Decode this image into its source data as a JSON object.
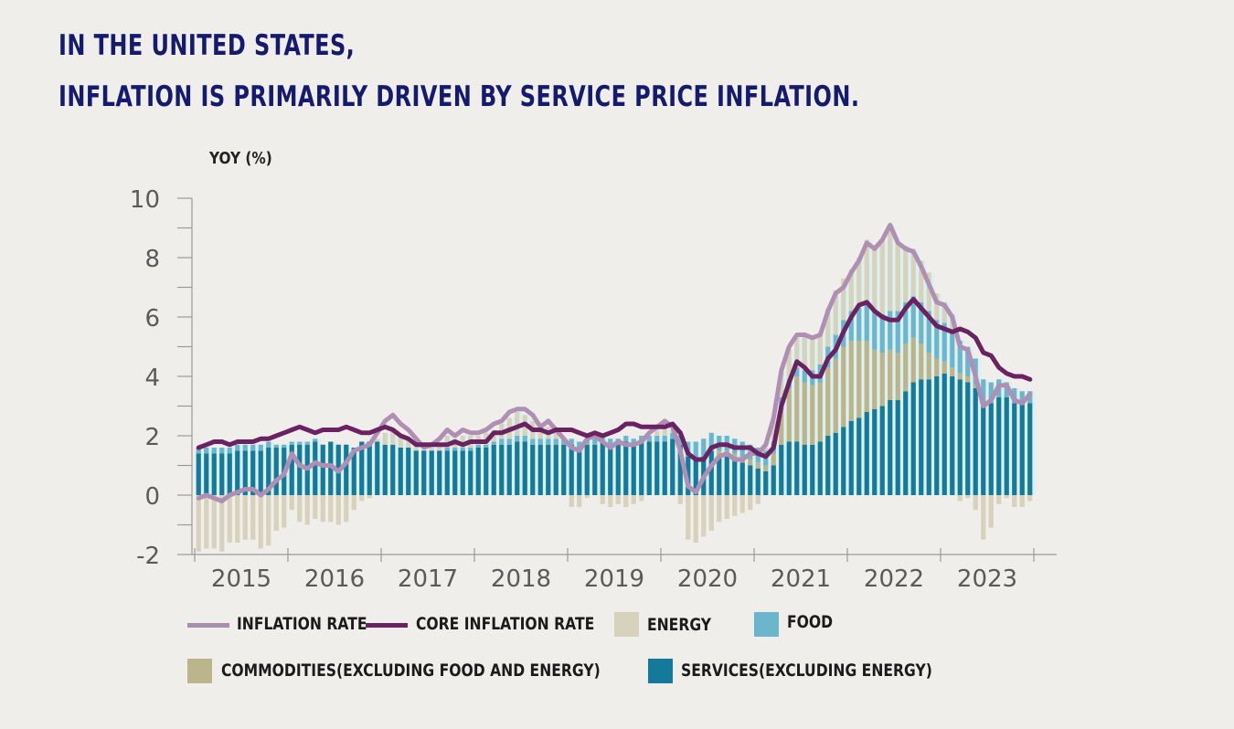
{
  "headline": {
    "line1": "IN THE UNITED STATES,",
    "line2": "INFLATION IS PRIMARILY DRIVEN BY SERVICE PRICE INFLATION."
  },
  "colors": {
    "background": "#f0eeea",
    "headline": "#141a6e",
    "inflation": "#b08fb5",
    "core": "#6a2262",
    "energy": "#d7d2bb",
    "food": "#6bb6cd",
    "commodities": "#bcb48a",
    "services": "#137a9b",
    "axis": "#9a9a9a",
    "bar_gap": "#c8f2f6"
  },
  "legend": {
    "inflation": "INFLATION RATE",
    "core": "CORE INFLATION RATE",
    "energy": "ENERGY",
    "food": "FOOD",
    "commodities": "COMMODITIES(EXCLUDING FOOD AND ENERGY)",
    "services": "SERVICES(EXCLUDING ENERGY)"
  },
  "chart_data": {
    "type": "bar",
    "subtype": "stacked bar + line",
    "title": "In the United States, inflation is primarily driven by service price inflation.",
    "ylabel": "YOY (%)",
    "xlabel": "",
    "ylim": [
      -2,
      10
    ],
    "yticks": [
      -2,
      0,
      2,
      4,
      6,
      8,
      10
    ],
    "ytick_labels": [
      "-2",
      "0",
      "2",
      "4",
      "6",
      "8",
      "10"
    ],
    "x_categories": [
      "2015",
      "2016",
      "2017",
      "2018",
      "2019",
      "2020",
      "2021",
      "2022",
      "2023"
    ],
    "frequency": "monthly",
    "start": "2015-01",
    "end": "2023-12",
    "grid": false,
    "legend_position": "bottom",
    "lines": [
      {
        "name": "INFLATION RATE",
        "values": [
          -0.1,
          0.0,
          -0.1,
          -0.2,
          0.0,
          0.1,
          0.2,
          0.2,
          0.0,
          0.2,
          0.5,
          0.7,
          1.4,
          1.0,
          0.9,
          1.1,
          1.0,
          1.0,
          0.8,
          1.1,
          1.5,
          1.6,
          1.7,
          2.1,
          2.5,
          2.7,
          2.4,
          2.2,
          1.9,
          1.6,
          1.7,
          1.9,
          2.2,
          2.0,
          2.2,
          2.1,
          2.1,
          2.2,
          2.4,
          2.5,
          2.8,
          2.9,
          2.9,
          2.7,
          2.3,
          2.5,
          2.2,
          1.9,
          1.6,
          1.5,
          1.9,
          2.0,
          1.8,
          1.6,
          1.8,
          1.7,
          1.7,
          1.8,
          2.1,
          2.3,
          2.5,
          2.3,
          1.5,
          0.3,
          0.1,
          0.6,
          1.0,
          1.3,
          1.4,
          1.2,
          1.2,
          1.4,
          1.4,
          1.7,
          2.6,
          4.2,
          5.0,
          5.4,
          5.4,
          5.3,
          5.4,
          6.2,
          6.8,
          7.0,
          7.5,
          7.9,
          8.5,
          8.3,
          8.6,
          9.1,
          8.5,
          8.3,
          8.2,
          7.7,
          7.1,
          6.5,
          6.4,
          6.0,
          5.0,
          4.9,
          4.0,
          3.0,
          3.2,
          3.7,
          3.7,
          3.2,
          3.1,
          3.4
        ]
      },
      {
        "name": "CORE INFLATION RATE",
        "values": [
          1.6,
          1.7,
          1.8,
          1.8,
          1.7,
          1.8,
          1.8,
          1.8,
          1.9,
          1.9,
          2.0,
          2.1,
          2.2,
          2.3,
          2.2,
          2.1,
          2.2,
          2.2,
          2.2,
          2.3,
          2.2,
          2.1,
          2.1,
          2.2,
          2.3,
          2.2,
          2.0,
          1.9,
          1.7,
          1.7,
          1.7,
          1.7,
          1.7,
          1.8,
          1.7,
          1.8,
          1.8,
          1.8,
          2.1,
          2.1,
          2.2,
          2.3,
          2.4,
          2.2,
          2.2,
          2.1,
          2.2,
          2.2,
          2.2,
          2.1,
          2.0,
          2.1,
          2.0,
          2.1,
          2.2,
          2.4,
          2.4,
          2.3,
          2.3,
          2.3,
          2.3,
          2.4,
          2.1,
          1.4,
          1.2,
          1.2,
          1.6,
          1.7,
          1.7,
          1.6,
          1.6,
          1.6,
          1.4,
          1.3,
          1.6,
          3.0,
          3.8,
          4.5,
          4.3,
          4.0,
          4.0,
          4.6,
          4.9,
          5.5,
          6.0,
          6.4,
          6.5,
          6.2,
          6.0,
          5.9,
          5.9,
          6.3,
          6.6,
          6.3,
          6.0,
          5.7,
          5.6,
          5.5,
          5.6,
          5.5,
          5.3,
          4.8,
          4.7,
          4.3,
          4.1,
          4.0,
          4.0,
          3.9
        ]
      }
    ],
    "series": [
      {
        "name": "SERVICES(EXCLUDING ENERGY)",
        "values": [
          1.4,
          1.4,
          1.4,
          1.4,
          1.4,
          1.5,
          1.5,
          1.5,
          1.5,
          1.6,
          1.6,
          1.6,
          1.7,
          1.7,
          1.7,
          1.8,
          1.7,
          1.8,
          1.7,
          1.7,
          1.6,
          1.8,
          1.8,
          1.8,
          1.7,
          1.7,
          1.6,
          1.6,
          1.5,
          1.5,
          1.5,
          1.5,
          1.5,
          1.5,
          1.5,
          1.5,
          1.6,
          1.6,
          1.7,
          1.7,
          1.7,
          1.8,
          1.8,
          1.7,
          1.7,
          1.7,
          1.7,
          1.7,
          1.7,
          1.6,
          1.7,
          1.7,
          1.8,
          1.7,
          1.7,
          1.8,
          1.7,
          1.8,
          1.8,
          1.8,
          1.8,
          1.9,
          1.7,
          1.3,
          1.2,
          1.3,
          1.5,
          1.3,
          1.3,
          1.2,
          1.1,
          1.0,
          0.9,
          0.8,
          1.0,
          1.7,
          1.8,
          1.8,
          1.7,
          1.7,
          1.8,
          2.0,
          2.1,
          2.3,
          2.5,
          2.6,
          2.8,
          2.9,
          3.0,
          3.2,
          3.2,
          3.5,
          3.8,
          3.9,
          3.9,
          4.0,
          4.1,
          4.0,
          3.9,
          3.8,
          3.6,
          3.0,
          3.1,
          3.3,
          3.3,
          3.1,
          3.1,
          3.1
        ]
      },
      {
        "name": "COMMODITIES(EXCLUDING FOOD AND ENERGY)",
        "values": [
          0.0,
          0.0,
          0.0,
          0.0,
          0.0,
          0.0,
          0.0,
          0.0,
          0.0,
          0.0,
          0.0,
          0.0,
          0.0,
          0.0,
          0.0,
          0.0,
          0.0,
          0.0,
          0.0,
          0.0,
          0.0,
          0.0,
          0.0,
          0.0,
          0.0,
          0.0,
          0.0,
          0.0,
          0.0,
          0.0,
          0.0,
          0.0,
          0.0,
          0.0,
          0.0,
          0.0,
          0.0,
          0.0,
          0.0,
          0.0,
          0.0,
          0.0,
          0.0,
          0.0,
          0.0,
          0.0,
          0.0,
          0.0,
          0.0,
          0.0,
          0.0,
          0.0,
          0.0,
          0.0,
          0.0,
          0.0,
          0.0,
          0.0,
          0.0,
          0.0,
          0.0,
          0.0,
          0.0,
          0.0,
          0.0,
          0.0,
          0.1,
          0.2,
          0.2,
          0.2,
          0.2,
          0.2,
          0.2,
          0.2,
          0.4,
          1.2,
          1.8,
          2.2,
          2.1,
          2.0,
          2.0,
          2.3,
          2.5,
          2.7,
          2.7,
          2.6,
          2.4,
          2.0,
          1.8,
          1.7,
          1.6,
          1.6,
          1.5,
          1.2,
          0.9,
          0.6,
          0.4,
          0.3,
          0.2,
          0.2,
          0.1,
          0.1,
          0.0,
          0.0,
          0.0,
          0.0,
          0.0,
          0.0
        ]
      },
      {
        "name": "FOOD",
        "values": [
          0.2,
          0.2,
          0.2,
          0.2,
          0.2,
          0.2,
          0.2,
          0.2,
          0.2,
          0.2,
          0.1,
          0.1,
          0.1,
          0.1,
          0.1,
          0.1,
          0.0,
          0.0,
          0.0,
          0.0,
          0.0,
          0.0,
          0.0,
          0.0,
          0.0,
          0.0,
          0.0,
          0.0,
          0.0,
          0.0,
          0.0,
          0.0,
          0.1,
          0.1,
          0.1,
          0.1,
          0.1,
          0.1,
          0.1,
          0.2,
          0.2,
          0.2,
          0.2,
          0.2,
          0.2,
          0.2,
          0.2,
          0.2,
          0.2,
          0.2,
          0.2,
          0.2,
          0.2,
          0.2,
          0.2,
          0.2,
          0.2,
          0.2,
          0.2,
          0.2,
          0.2,
          0.2,
          0.3,
          0.5,
          0.6,
          0.6,
          0.5,
          0.5,
          0.5,
          0.5,
          0.5,
          0.5,
          0.5,
          0.5,
          0.4,
          0.4,
          0.3,
          0.3,
          0.4,
          0.5,
          0.6,
          0.7,
          0.8,
          0.9,
          1.0,
          1.1,
          1.2,
          1.3,
          1.3,
          1.3,
          1.4,
          1.4,
          1.4,
          1.4,
          1.4,
          1.3,
          1.3,
          1.2,
          1.1,
          1.0,
          0.9,
          0.8,
          0.7,
          0.6,
          0.5,
          0.5,
          0.4,
          0.4
        ]
      },
      {
        "name": "ENERGY",
        "values": [
          -1.9,
          -1.8,
          -1.8,
          -1.9,
          -1.6,
          -1.6,
          -1.5,
          -1.5,
          -1.8,
          -1.7,
          -1.2,
          -1.1,
          -0.5,
          -0.9,
          -1.0,
          -0.8,
          -0.9,
          -0.9,
          -1.0,
          -0.9,
          -0.5,
          -0.2,
          -0.1,
          0.1,
          0.4,
          0.5,
          0.4,
          0.3,
          0.2,
          0.0,
          0.1,
          0.2,
          0.4,
          0.3,
          0.4,
          0.4,
          0.3,
          0.4,
          0.4,
          0.5,
          0.7,
          0.8,
          0.7,
          0.6,
          0.5,
          0.4,
          0.2,
          0.0,
          -0.4,
          -0.4,
          -0.1,
          0.0,
          -0.3,
          -0.4,
          -0.3,
          -0.4,
          -0.3,
          -0.2,
          0.0,
          0.2,
          0.3,
          0.1,
          -0.3,
          -1.5,
          -1.6,
          -1.4,
          -1.2,
          -0.9,
          -0.8,
          -0.7,
          -0.6,
          -0.5,
          -0.3,
          0.1,
          0.7,
          0.9,
          1.0,
          1.0,
          1.2,
          1.1,
          1.1,
          1.3,
          1.5,
          1.4,
          1.4,
          1.7,
          2.2,
          2.2,
          2.5,
          2.9,
          2.3,
          1.9,
          1.6,
          1.4,
          1.3,
          0.9,
          0.7,
          0.6,
          -0.2,
          -0.1,
          -0.5,
          -1.5,
          -1.1,
          -0.3,
          -0.1,
          -0.4,
          -0.4,
          -0.2
        ]
      }
    ]
  }
}
